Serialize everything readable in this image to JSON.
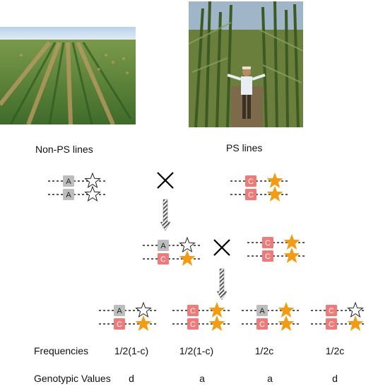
{
  "photos": {
    "left": "non-PS sorghum field photo",
    "right": "PS sorghum field photo with person"
  },
  "labels": {
    "non_ps": "Non-PS lines",
    "ps": "PS lines"
  },
  "cross_symbol": "×",
  "alleles": {
    "a": "A",
    "c": "C"
  },
  "colors": {
    "allele_a": "#bdbdbd",
    "allele_c": "#f07a78",
    "star_filled": "#f39c12",
    "star_empty": "#ffffff",
    "line": "#222222"
  },
  "rows": {
    "frequencies": {
      "header": "Frequencies",
      "values": [
        "1/2(1-c)",
        "1/2(1-c)",
        "1/2c",
        "1/2c"
      ]
    },
    "genotypic_values": {
      "header": "Genotypic Values",
      "values": [
        "d",
        "a",
        "a",
        "d"
      ]
    }
  }
}
